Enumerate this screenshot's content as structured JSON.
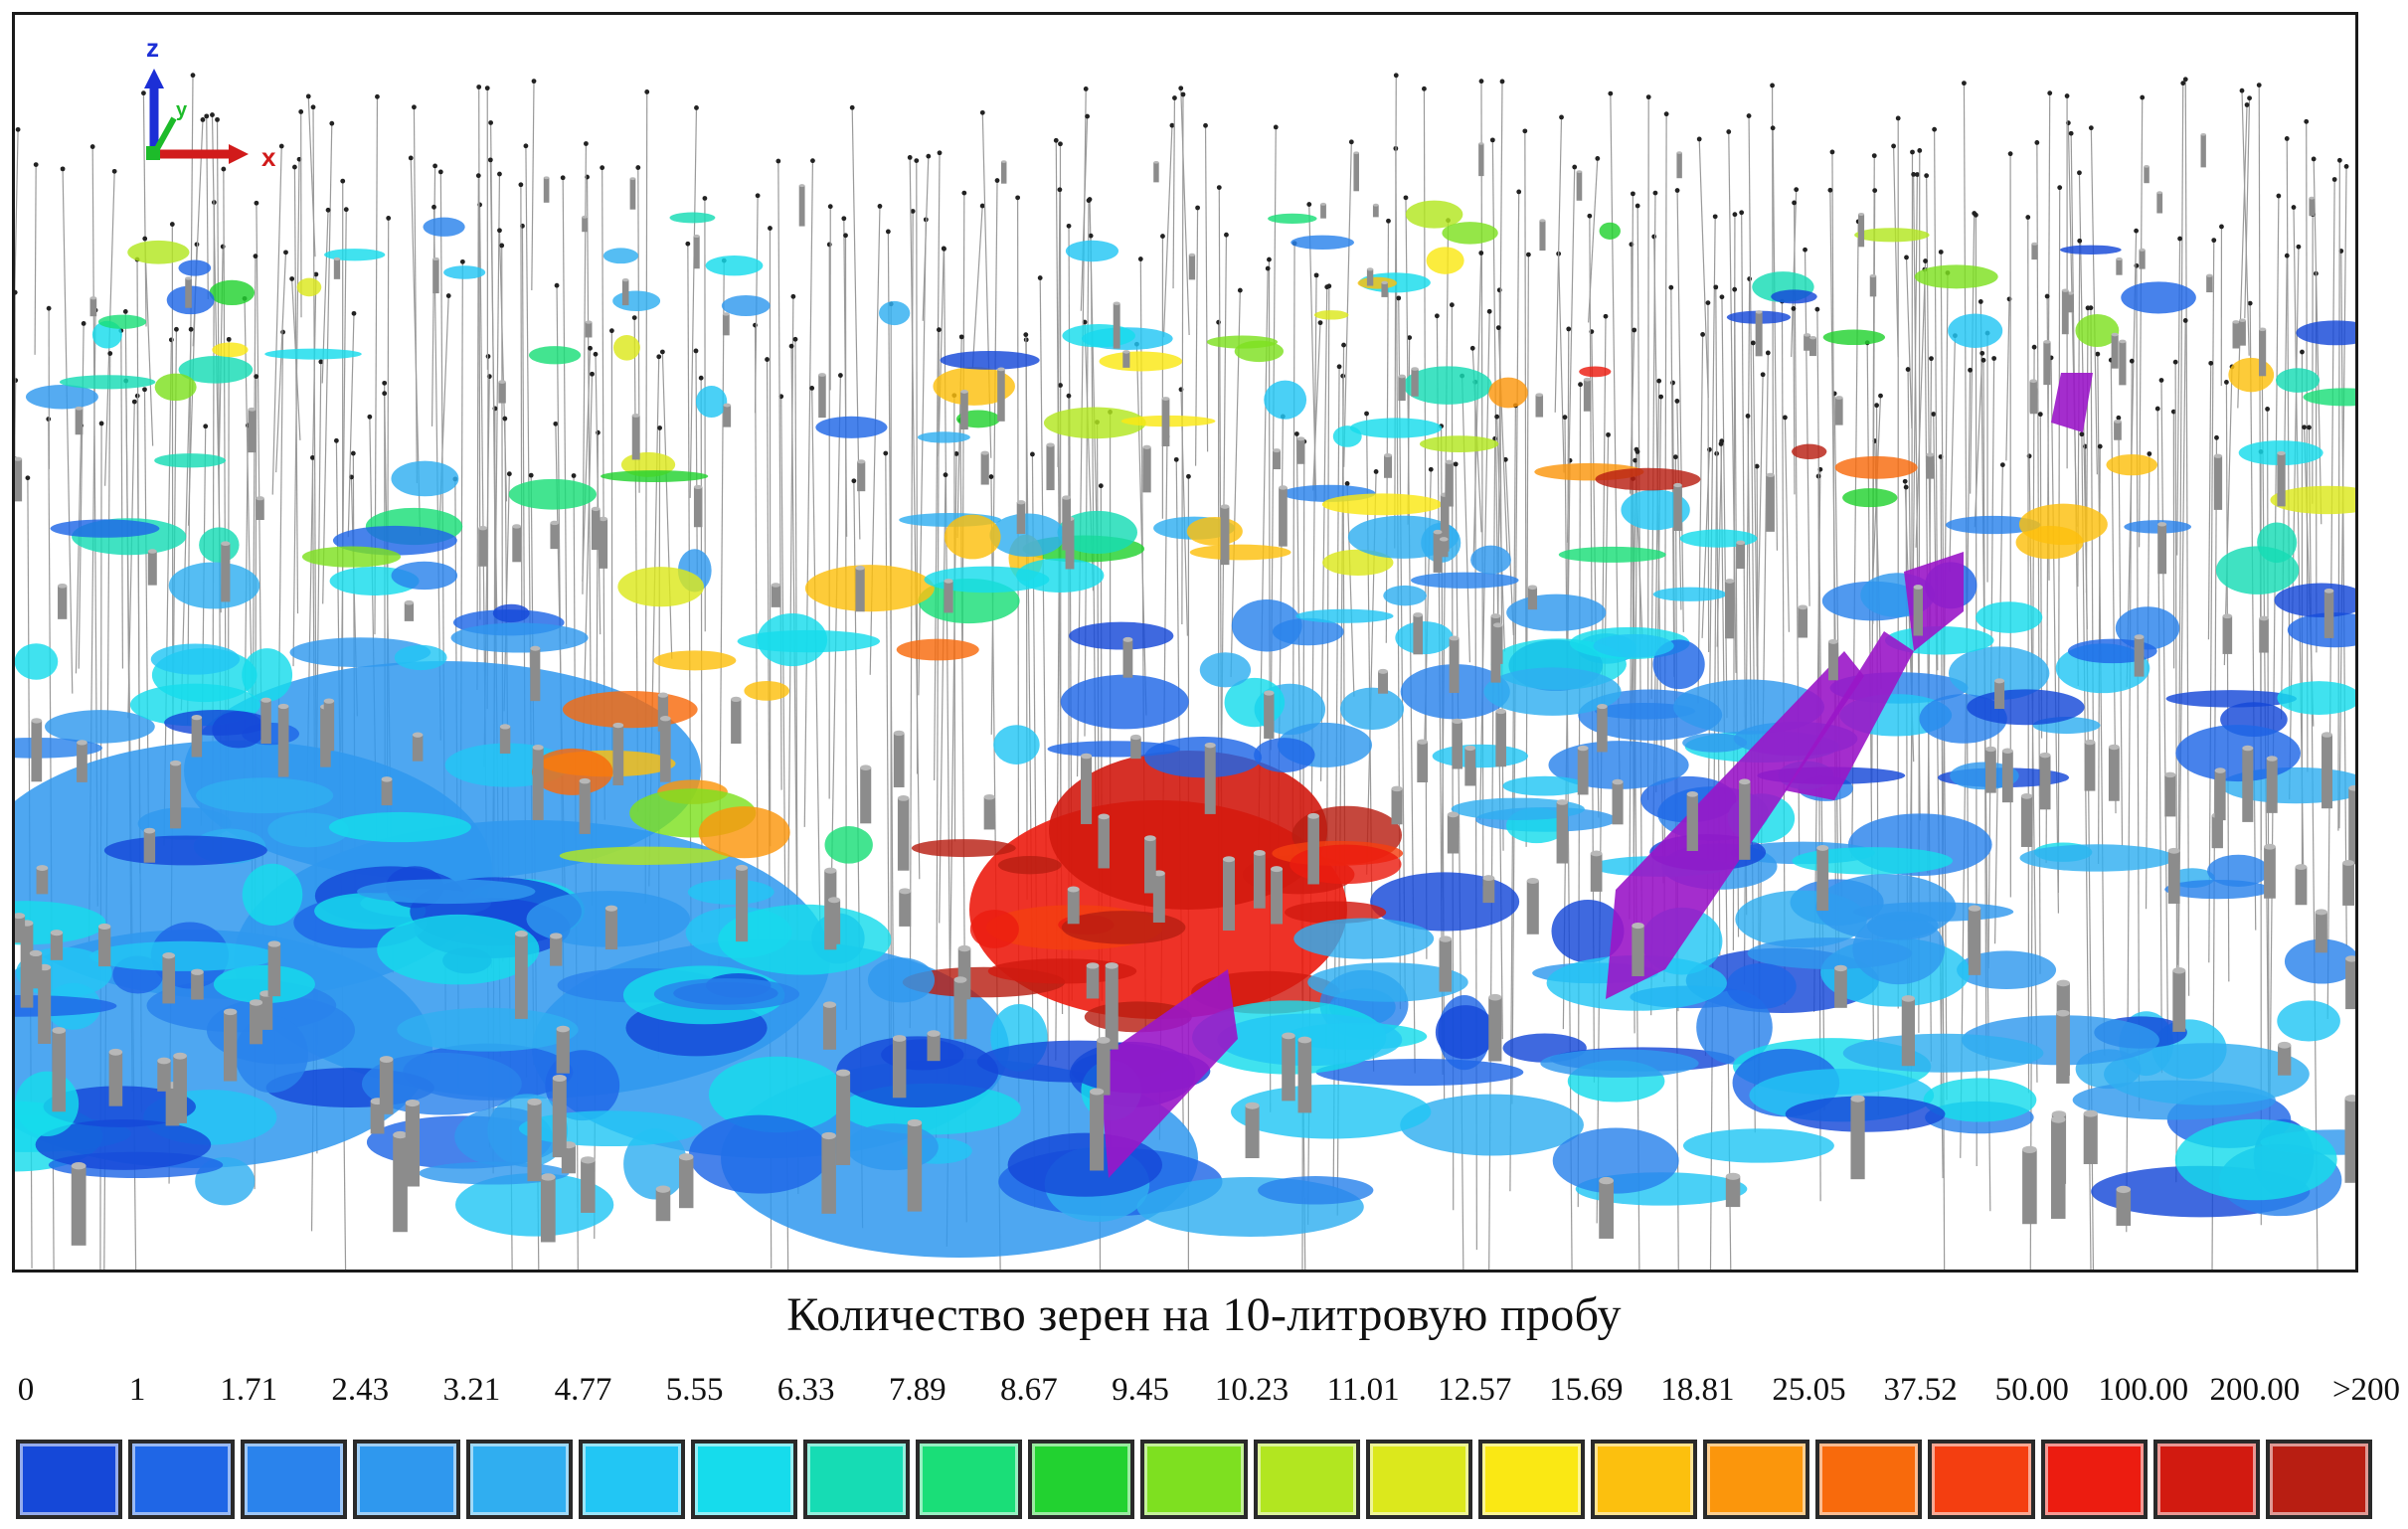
{
  "viewer": {
    "axes_gizmo": {
      "x_label": "x",
      "y_label": "y",
      "z_label": "z"
    }
  },
  "legend": {
    "title": "Количество зерен на 10-литровую пробу",
    "labels": [
      "0",
      "1",
      "1.71",
      "2.43",
      "3.21",
      "4.77",
      "5.55",
      "6.33",
      "7.89",
      "8.67",
      "9.45",
      "10.23",
      "11.01",
      "12.57",
      "15.69",
      "18.81",
      "25.05",
      "37.52",
      "50.00",
      "100.00",
      "200.00",
      ">200"
    ],
    "colors": [
      "#1548d8",
      "#1f66e6",
      "#2a83ec",
      "#2f98ee",
      "#30aef0",
      "#22c6f4",
      "#16dcec",
      "#16dcb4",
      "#1ade78",
      "#22d230",
      "#7ee020",
      "#b2e620",
      "#dce81c",
      "#fae814",
      "#fcc00e",
      "#fb960c",
      "#f86a0c",
      "#f43e10",
      "#ec1c10",
      "#d21a10",
      "#b81e12"
    ]
  }
}
